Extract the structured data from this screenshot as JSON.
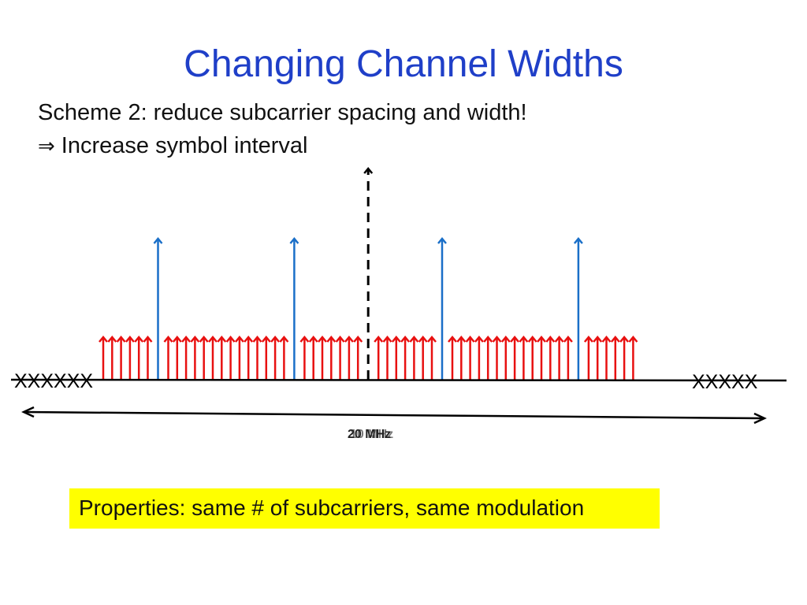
{
  "slide": {
    "title": "Changing Channel Widths",
    "scheme_line": "Scheme 2: reduce subcarrier spacing and width!",
    "implication_arrow": "⇒",
    "implication_text": "Increase symbol interval",
    "properties_text": "Properties: same # of subcarriers, same modulation"
  },
  "diagram": {
    "left_guard_marks": "XXXXXX",
    "right_guard_marks": "XXXXX",
    "bandwidth_label_old": "20 MHz",
    "bandwidth_label_new": "10 MHz",
    "colors": {
      "data_subcarrier": "#e81010",
      "pilot_subcarrier": "#1a6fc8",
      "axis": "#000000",
      "dc": "#000000",
      "title": "#1f3fc8",
      "highlight": "#ffff00"
    },
    "groups": [
      {
        "type": "data",
        "count": 6
      },
      {
        "type": "pilot"
      },
      {
        "type": "data",
        "count": 14
      },
      {
        "type": "pilot"
      },
      {
        "type": "data",
        "count": 7
      },
      {
        "type": "dc"
      },
      {
        "type": "data",
        "count": 7
      },
      {
        "type": "pilot"
      },
      {
        "type": "data",
        "count": 14
      },
      {
        "type": "pilot"
      },
      {
        "type": "data",
        "count": 6
      }
    ]
  }
}
